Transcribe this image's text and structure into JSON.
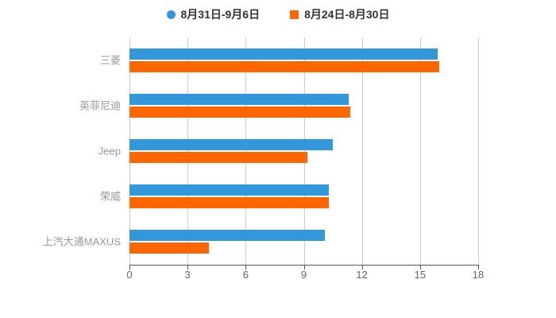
{
  "chart_data": {
    "type": "bar",
    "orientation": "horizontal",
    "title": "",
    "xlabel": "",
    "ylabel": "",
    "categories": [
      "三菱",
      "英菲尼迪",
      "Jeep",
      "荣威",
      "上汽大通MAXUS"
    ],
    "series": [
      {
        "name": "8月31日-9月6日",
        "color": "#3398DB",
        "marker": "circle",
        "values": [
          15.9,
          11.3,
          10.5,
          10.3,
          10.1
        ]
      },
      {
        "name": "8月24日-8月30日",
        "color": "#FF6600",
        "marker": "square",
        "values": [
          16.0,
          11.4,
          9.2,
          10.3,
          4.1
        ]
      }
    ],
    "xlim": [
      0,
      18
    ],
    "xticks": [
      0,
      3,
      6,
      9,
      12,
      15,
      18
    ],
    "grid": true,
    "legend_position": "top"
  },
  "colors": {
    "background": "#ffffff",
    "grid_line": "#cccccc",
    "axis_line": "#555555",
    "category_label": "#999999",
    "tick_label": "#666666",
    "legend_text": "#333333",
    "series_blue": "#3398DB",
    "series_orange": "#FF6600"
  }
}
